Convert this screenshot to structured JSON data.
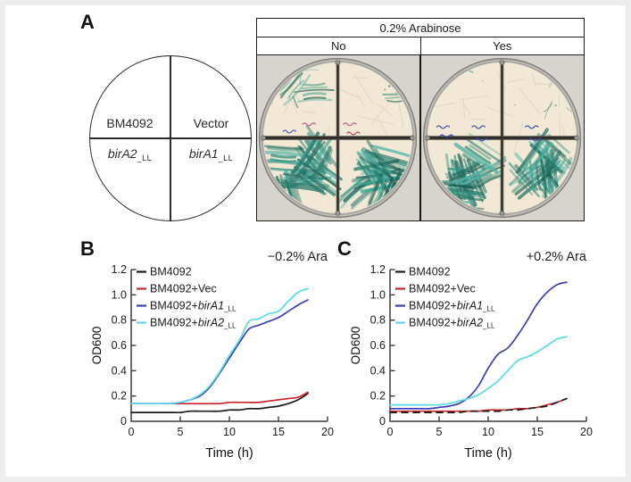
{
  "panel_a": {
    "label": "A",
    "diagram": {
      "top_left": "BM4092",
      "top_right": "Vector",
      "bottom_left_gene": "birA2",
      "bottom_left_sub": "_LL",
      "bottom_right_gene": "birA1",
      "bottom_right_sub": "_LL"
    },
    "table": {
      "header": "0.2% Arabinose",
      "col_no": "No",
      "col_yes": "Yes",
      "plates": [
        {
          "condition": "No",
          "seed": 7,
          "quadrants": [
            "moderate",
            "sparse",
            "dense",
            "dense"
          ],
          "marks": [
            {
              "dx": -62,
              "dy": -7,
              "color": "#3a4bb0"
            },
            {
              "dx": -40,
              "dy": -15,
              "color": "#c2508d"
            },
            {
              "dx": 6,
              "dy": -15,
              "color": "#c2508d"
            },
            {
              "dx": 10,
              "dy": -5,
              "color": "#a83a52"
            }
          ]
        },
        {
          "condition": "Yes",
          "seed": 13,
          "quadrants": [
            "none",
            "trace",
            "dense",
            "dense"
          ],
          "marks": [
            {
              "dx": -74,
              "dy": -12,
              "color": "#2b3fae"
            },
            {
              "dx": -70,
              "dy": -2,
              "color": "#2b3fae"
            },
            {
              "dx": -34,
              "dy": -12,
              "color": "#2b3fae"
            },
            {
              "dx": -30,
              "dy": 2,
              "color": "#2b3fae"
            },
            {
              "dx": 26,
              "dy": -12,
              "color": "#2b3fae"
            },
            {
              "dx": 30,
              "dy": 2,
              "color": "#2b3fae"
            }
          ]
        }
      ]
    }
  },
  "panel_b": {
    "label": "B"
  },
  "panel_c": {
    "label": "C"
  },
  "chart_data": [
    {
      "type": "line",
      "panel": "B",
      "title": "−0.2% Ara",
      "xlabel": "Time (h)",
      "ylabel": "OD600",
      "xlim": [
        0,
        20
      ],
      "ylim": [
        0,
        1.2
      ],
      "xticks": [
        0,
        5,
        10,
        15,
        20
      ],
      "ytick_labels": [
        "0",
        "0.2",
        "0.4",
        "0.6",
        "0.8",
        "1.0",
        "1.2"
      ],
      "legend_position": "top-left",
      "grid": false,
      "x": [
        0,
        1,
        2,
        3,
        4,
        5,
        6,
        7,
        8,
        9,
        10,
        11,
        12,
        13,
        14,
        15,
        16,
        17,
        18
      ],
      "series": [
        {
          "name": "BM4092",
          "parts": {
            "prefix": "BM4092",
            "gene": "",
            "sub": ""
          },
          "color": "#1a1a1a",
          "dash": "",
          "values": [
            0.07,
            0.07,
            0.07,
            0.07,
            0.07,
            0.07,
            0.08,
            0.08,
            0.08,
            0.08,
            0.09,
            0.09,
            0.1,
            0.1,
            0.11,
            0.12,
            0.14,
            0.17,
            0.22
          ]
        },
        {
          "name": "BM4092+Vec",
          "parts": {
            "prefix": "BM4092+Vec",
            "gene": "",
            "sub": ""
          },
          "color": "#c9262a",
          "dash": "",
          "values": [
            0.14,
            0.14,
            0.14,
            0.14,
            0.14,
            0.14,
            0.14,
            0.14,
            0.14,
            0.14,
            0.15,
            0.15,
            0.15,
            0.15,
            0.16,
            0.17,
            0.18,
            0.19,
            0.23
          ]
        },
        {
          "name": "BM4092+birA1_LL",
          "parts": {
            "prefix": "BM4092+",
            "gene": "birA1",
            "sub": "_LL"
          },
          "color": "#3b3eb5",
          "dash": "",
          "values": [
            0.14,
            0.14,
            0.14,
            0.14,
            0.14,
            0.15,
            0.17,
            0.2,
            0.27,
            0.38,
            0.5,
            0.62,
            0.73,
            0.76,
            0.79,
            0.82,
            0.87,
            0.92,
            0.96
          ]
        },
        {
          "name": "BM4092+birA2_LL",
          "parts": {
            "prefix": "BM4092+",
            "gene": "birA2",
            "sub": "_LL"
          },
          "color": "#58d9ec",
          "dash": "",
          "values": [
            0.14,
            0.14,
            0.14,
            0.14,
            0.14,
            0.15,
            0.17,
            0.21,
            0.28,
            0.39,
            0.52,
            0.64,
            0.79,
            0.81,
            0.85,
            0.87,
            0.95,
            1.02,
            1.05
          ]
        }
      ]
    },
    {
      "type": "line",
      "panel": "C",
      "title": "+0.2% Ara",
      "xlabel": "Time (h)",
      "ylabel": "OD600",
      "xlim": [
        0,
        20
      ],
      "ylim": [
        0,
        1.2
      ],
      "xticks": [
        0,
        5,
        10,
        15,
        20
      ],
      "ytick_labels": [
        "0",
        "0.2",
        "0.4",
        "0.6",
        "0.8",
        "1.0",
        "1.2"
      ],
      "legend_position": "top-left",
      "grid": false,
      "x": [
        0,
        1,
        2,
        3,
        4,
        5,
        6,
        7,
        8,
        9,
        10,
        11,
        12,
        13,
        14,
        15,
        16,
        17,
        18
      ],
      "series": [
        {
          "name": "BM4092+Vec",
          "parts": {
            "prefix": "BM4092+Vec",
            "gene": "",
            "sub": ""
          },
          "color": "#c9262a",
          "dash": "",
          "legend_order": 1,
          "values": [
            0.08,
            0.08,
            0.08,
            0.08,
            0.08,
            0.08,
            0.08,
            0.08,
            0.08,
            0.08,
            0.09,
            0.09,
            0.09,
            0.1,
            0.1,
            0.11,
            0.13,
            0.15,
            0.18
          ]
        },
        {
          "name": "BM4092",
          "parts": {
            "prefix": "BM4092",
            "gene": "",
            "sub": ""
          },
          "color": "#1a1a1a",
          "dash": "7 6",
          "legend_order": 0,
          "values": [
            0.07,
            0.07,
            0.07,
            0.07,
            0.07,
            0.07,
            0.07,
            0.07,
            0.08,
            0.08,
            0.08,
            0.08,
            0.09,
            0.09,
            0.1,
            0.11,
            0.12,
            0.15,
            0.18
          ]
        },
        {
          "name": "BM4092+birA1_LL",
          "parts": {
            "prefix": "BM4092+",
            "gene": "birA1",
            "sub": "_LL"
          },
          "color": "#3b3eb5",
          "dash": "",
          "legend_order": 2,
          "values": [
            0.1,
            0.1,
            0.1,
            0.1,
            0.1,
            0.11,
            0.12,
            0.14,
            0.19,
            0.28,
            0.42,
            0.53,
            0.58,
            0.68,
            0.8,
            0.93,
            1.02,
            1.08,
            1.1
          ]
        },
        {
          "name": "BM4092+birA2_LL",
          "parts": {
            "prefix": "BM4092+",
            "gene": "birA2",
            "sub": "_LL"
          },
          "color": "#58d9ec",
          "dash": "",
          "legend_order": 3,
          "values": [
            0.13,
            0.13,
            0.13,
            0.13,
            0.13,
            0.13,
            0.14,
            0.16,
            0.18,
            0.21,
            0.26,
            0.32,
            0.4,
            0.48,
            0.51,
            0.55,
            0.6,
            0.65,
            0.67
          ]
        }
      ]
    }
  ],
  "colors": {
    "agar": "#f1e9d5",
    "agar_edge": "#e6dcc2",
    "photo_bg": "#d7d4d0",
    "streak_palette": [
      "#2e8f7e",
      "#3aa492",
      "#27786b",
      "#4fb2a3",
      "#1f6a5e",
      "#175a50"
    ],
    "divider": "#4c4a45",
    "axis": "#3a3a3a"
  }
}
